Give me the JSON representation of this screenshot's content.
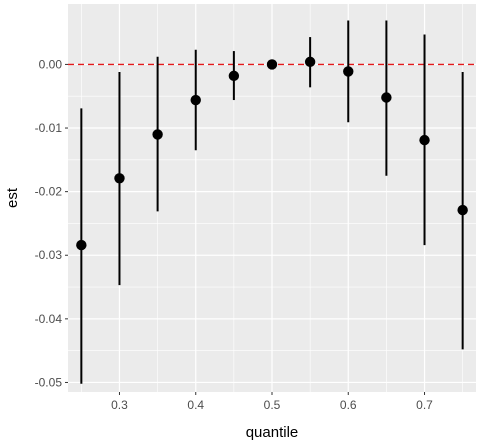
{
  "chart_data": {
    "type": "scatter",
    "title": "",
    "xlabel": "quantile",
    "ylabel": "est",
    "xlim": [
      0.2325,
      0.7675
    ],
    "ylim": [
      -0.0515,
      0.0095
    ],
    "x_ticks": [
      0.3,
      0.4,
      0.5,
      0.6,
      0.7
    ],
    "x_tick_labels": [
      "0.3",
      "0.4",
      "0.5",
      "0.6",
      "0.7"
    ],
    "y_ticks": [
      0.0,
      -0.01,
      -0.02,
      -0.03,
      -0.04,
      -0.05
    ],
    "y_tick_labels": [
      "0.00",
      "-0.01",
      "-0.02",
      "-0.03",
      "-0.04",
      "-0.05"
    ],
    "grid": true,
    "panel_background": "#ebebeb",
    "grid_color": "#ffffff",
    "point_color": "#000000",
    "reference_line": {
      "y": 0.0,
      "color": "#e41a1c",
      "style": "dashed"
    },
    "points": [
      {
        "x": 0.25,
        "est": -0.0284,
        "lower": -0.0502,
        "upper": -0.0069
      },
      {
        "x": 0.3,
        "est": -0.0179,
        "lower": -0.0347,
        "upper": -0.0012
      },
      {
        "x": 0.35,
        "est": -0.011,
        "lower": -0.0231,
        "upper": 0.0012
      },
      {
        "x": 0.4,
        "est": -0.0056,
        "lower": -0.0135,
        "upper": 0.0023
      },
      {
        "x": 0.45,
        "est": -0.0018,
        "lower": -0.0056,
        "upper": 0.0021
      },
      {
        "x": 0.5,
        "est": 0.0,
        "lower": 0.0,
        "upper": 0.0
      },
      {
        "x": 0.55,
        "est": 0.0004,
        "lower": -0.0036,
        "upper": 0.0043
      },
      {
        "x": 0.6,
        "est": -0.0011,
        "lower": -0.0091,
        "upper": 0.0069
      },
      {
        "x": 0.65,
        "est": -0.0052,
        "lower": -0.0175,
        "upper": 0.0069
      },
      {
        "x": 0.7,
        "est": -0.0119,
        "lower": -0.0284,
        "upper": 0.0047
      },
      {
        "x": 0.75,
        "est": -0.0229,
        "lower": -0.0448,
        "upper": -0.0012
      }
    ]
  }
}
